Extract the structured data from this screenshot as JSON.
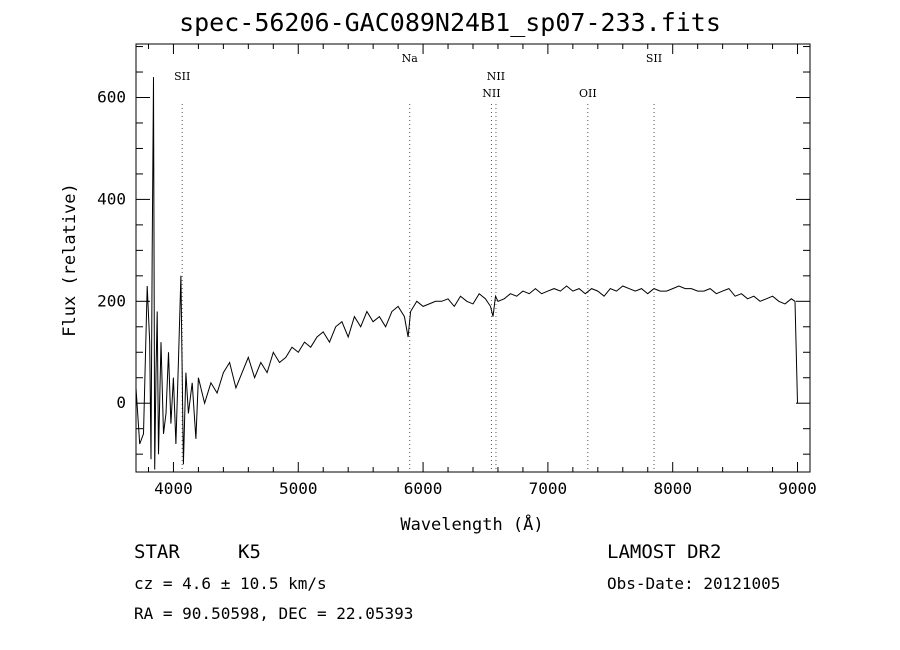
{
  "chart_data": {
    "type": "line",
    "title": "spec-56206-GAC089N24B1_sp07-233.fits",
    "xlabel": "Wavelength (Å)",
    "ylabel": "Flux (relative)",
    "xlim": [
      3700,
      9100
    ],
    "ylim": [
      -135,
      705
    ],
    "xticks": [
      4000,
      5000,
      6000,
      7000,
      8000,
      9000
    ],
    "yticks": [
      0,
      200,
      400,
      600
    ],
    "grid": false,
    "line_color": "#000000",
    "series": [
      {
        "x": [
          3700,
          3730,
          3760,
          3790,
          3810,
          3820,
          3830,
          3840,
          3850,
          3860,
          3870,
          3880,
          3900,
          3920,
          3940,
          3960,
          3980,
          4000,
          4020,
          4040,
          4060,
          4080,
          4100,
          4120,
          4150,
          4180,
          4200,
          4250,
          4300,
          4350,
          4400,
          4450,
          4500,
          4550,
          4600,
          4650,
          4700,
          4750,
          4800,
          4850,
          4900,
          4950,
          5000,
          5050,
          5100,
          5150,
          5200,
          5250,
          5300,
          5350,
          5400,
          5450,
          5500,
          5550,
          5600,
          5650,
          5700,
          5750,
          5800,
          5850,
          5880,
          5900,
          5950,
          6000,
          6050,
          6100,
          6150,
          6200,
          6250,
          6300,
          6350,
          6400,
          6450,
          6500,
          6540,
          6560,
          6580,
          6600,
          6650,
          6700,
          6750,
          6800,
          6850,
          6900,
          6950,
          7000,
          7050,
          7100,
          7150,
          7200,
          7250,
          7300,
          7350,
          7400,
          7450,
          7500,
          7550,
          7600,
          7650,
          7700,
          7750,
          7800,
          7850,
          7900,
          7950,
          8000,
          8050,
          8100,
          8150,
          8200,
          8250,
          8300,
          8350,
          8400,
          8450,
          8500,
          8550,
          8600,
          8650,
          8700,
          8750,
          8800,
          8850,
          8900,
          8950,
          8980,
          9000
        ],
        "y": [
          30,
          -80,
          -60,
          230,
          120,
          -110,
          300,
          640,
          -130,
          60,
          180,
          -100,
          120,
          -60,
          -20,
          100,
          -40,
          50,
          -80,
          80,
          250,
          -120,
          60,
          -20,
          40,
          -70,
          50,
          0,
          40,
          20,
          60,
          80,
          30,
          60,
          90,
          50,
          80,
          60,
          100,
          80,
          90,
          110,
          100,
          120,
          110,
          130,
          140,
          120,
          150,
          160,
          130,
          170,
          150,
          180,
          160,
          170,
          150,
          180,
          190,
          170,
          130,
          180,
          200,
          190,
          195,
          200,
          200,
          205,
          190,
          210,
          200,
          195,
          215,
          205,
          190,
          170,
          210,
          200,
          205,
          215,
          210,
          220,
          215,
          225,
          215,
          220,
          225,
          220,
          230,
          220,
          225,
          215,
          225,
          220,
          210,
          225,
          220,
          230,
          225,
          220,
          225,
          215,
          225,
          220,
          220,
          225,
          230,
          225,
          225,
          220,
          220,
          225,
          215,
          220,
          225,
          210,
          215,
          205,
          210,
          200,
          205,
          210,
          200,
          195,
          205,
          200,
          0
        ]
      }
    ],
    "line_markers": [
      {
        "label": "SII",
        "x": 4070,
        "label_row": 1
      },
      {
        "label": "Na",
        "x": 5893,
        "label_row": 0
      },
      {
        "label": "NII",
        "x": 6548,
        "label_row": 2
      },
      {
        "label": "NII",
        "x": 6584,
        "label_row": 1
      },
      {
        "label": "OII",
        "x": 7320,
        "label_row": 2
      },
      {
        "label": "SII",
        "x": 7850,
        "label_row": 0
      }
    ]
  },
  "info": {
    "object_class": "STAR",
    "subclass": "K5",
    "survey": "LAMOST DR2",
    "redshift_line": "cz = 4.6 ± 10.5 km/s",
    "obs_date_line": "Obs-Date: 20121005",
    "coords_line": "RA =  90.50598, DEC =  22.05393"
  }
}
